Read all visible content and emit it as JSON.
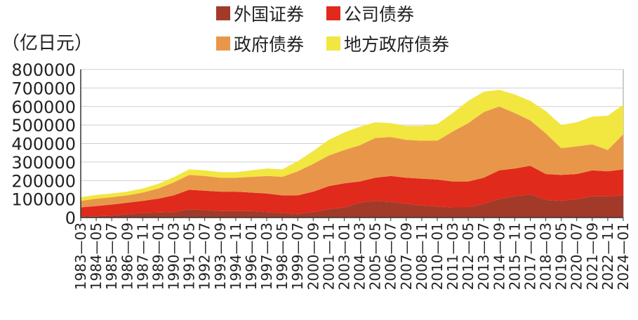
{
  "chart_data": {
    "type": "area",
    "stacked": true,
    "ylabel": "（亿日元）",
    "ylim": [
      0,
      800000
    ],
    "yticks": [
      0,
      100000,
      200000,
      300000,
      400000,
      500000,
      600000,
      700000,
      800000
    ],
    "ytick_labels": [
      "0",
      "100000",
      "200000",
      "300000",
      "400000",
      "500000",
      "600000",
      "700000",
      "800000"
    ],
    "x": [
      "1983—03",
      "1984—05",
      "1985—07",
      "1986—09",
      "1987—11",
      "1989—01",
      "1990—03",
      "1991—05",
      "1992—07",
      "1993—09",
      "1994—11",
      "1996—01",
      "1997—03",
      "1998—05",
      "1999—07",
      "2000—09",
      "2001—11",
      "2003—01",
      "2004—03",
      "2005—05",
      "2006—07",
      "2007—09",
      "2008—11",
      "2010—01",
      "2011—03",
      "2012—05",
      "2013—07",
      "2014—09",
      "2015—11",
      "2017—01",
      "2018—03",
      "2019—05",
      "2020—07",
      "2021—09",
      "2022—11",
      "2024—01"
    ],
    "series": [
      {
        "name": "外国证券",
        "color": "#a23a2a",
        "values": [
          5000,
          7000,
          10000,
          20000,
          25000,
          27000,
          30000,
          45000,
          40000,
          35000,
          35000,
          35000,
          30000,
          25000,
          20000,
          30000,
          45000,
          55000,
          80000,
          90000,
          85000,
          75000,
          65000,
          60000,
          55000,
          55000,
          75000,
          100000,
          115000,
          125000,
          95000,
          90000,
          100000,
          115000,
          115000,
          120000
        ]
      },
      {
        "name": "公司债券",
        "color": "#e02a1c",
        "values": [
          50000,
          55000,
          60000,
          60000,
          65000,
          75000,
          90000,
          105000,
          105000,
          105000,
          105000,
          100000,
          100000,
          95000,
          100000,
          110000,
          125000,
          130000,
          115000,
          125000,
          140000,
          140000,
          145000,
          145000,
          140000,
          140000,
          140000,
          155000,
          150000,
          155000,
          140000,
          140000,
          135000,
          140000,
          135000,
          140000
        ]
      },
      {
        "name": "政府债券",
        "color": "#e8974a",
        "values": [
          35000,
          40000,
          40000,
          40000,
          45000,
          55000,
          70000,
          80000,
          80000,
          75000,
          75000,
          85000,
          95000,
          100000,
          130000,
          150000,
          165000,
          180000,
          195000,
          215000,
          210000,
          205000,
          205000,
          210000,
          270000,
          315000,
          355000,
          345000,
          300000,
          245000,
          220000,
          145000,
          150000,
          140000,
          115000,
          190000
        ]
      },
      {
        "name": "地方政府债券",
        "color": "#f2e640",
        "values": [
          20000,
          20000,
          20000,
          20000,
          22000,
          25000,
          28000,
          30000,
          30000,
          30000,
          30000,
          35000,
          40000,
          40000,
          55000,
          70000,
          85000,
          95000,
          100000,
          85000,
          75000,
          75000,
          80000,
          90000,
          100000,
          120000,
          110000,
          90000,
          100000,
          105000,
          120000,
          125000,
          130000,
          150000,
          185000,
          160000
        ]
      }
    ],
    "legend": [
      {
        "label": "外国证券",
        "color": "#a23a2a"
      },
      {
        "label": "公司债券",
        "color": "#e02a1c"
      },
      {
        "label": "政府债券",
        "color": "#e8974a"
      },
      {
        "label": "地方政府债券",
        "color": "#f2e640"
      }
    ],
    "legend_position": "top",
    "grid": true
  }
}
